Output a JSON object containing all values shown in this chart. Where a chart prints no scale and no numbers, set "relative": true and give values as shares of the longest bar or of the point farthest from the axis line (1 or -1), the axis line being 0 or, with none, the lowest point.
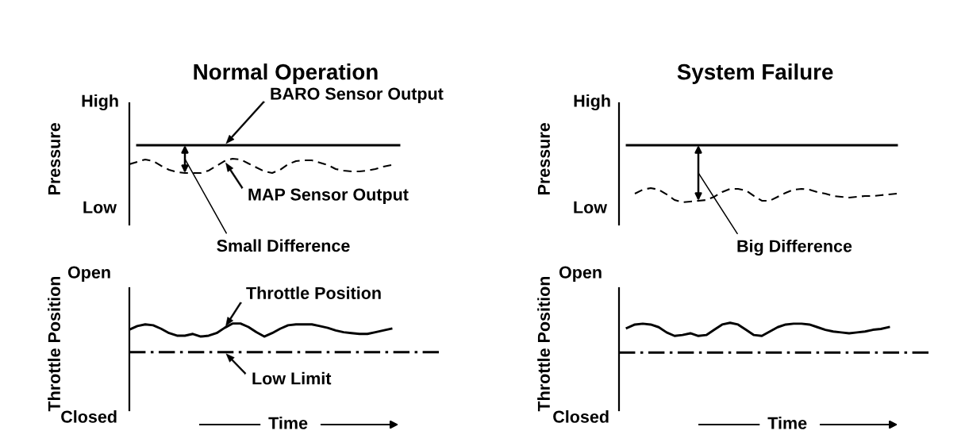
{
  "chart_data": [
    {
      "type": "line",
      "title": "Normal Operation",
      "ylabel": "Pressure",
      "relative": true,
      "categories": [
        null,
        null,
        null,
        null,
        null,
        null,
        null,
        null,
        null,
        null,
        null,
        null,
        null,
        null,
        null,
        null,
        null,
        null,
        null,
        null,
        null,
        null,
        null,
        null,
        null,
        null,
        null,
        null,
        null,
        null,
        null,
        null,
        null,
        null,
        null,
        null,
        null,
        null,
        null,
        null
      ],
      "series": [
        {
          "name": "BARO Sensor Output",
          "color": "#000000",
          "line_style": "solid",
          "values": [
            null,
            1,
            1,
            1,
            1,
            1,
            1,
            1,
            1,
            1,
            1,
            1,
            1,
            1,
            1,
            1,
            1,
            1,
            1,
            1,
            1,
            1,
            1,
            1,
            1,
            1,
            1,
            1,
            1,
            1,
            1,
            1,
            1,
            1,
            1,
            null,
            null,
            null,
            null,
            null
          ]
        },
        {
          "name": "MAP Sensor Output",
          "color": "#000000",
          "line_style": "dashed",
          "values": [
            0.76,
            0.79,
            0.82,
            0.8,
            0.74,
            0.69,
            0.66,
            0.65,
            0.65,
            0.65,
            0.68,
            0.74,
            0.8,
            0.83,
            0.82,
            0.77,
            0.72,
            0.67,
            0.65,
            0.69,
            0.76,
            0.8,
            0.81,
            0.81,
            0.78,
            0.75,
            0.7,
            0.68,
            0.67,
            0.67,
            0.68,
            0.7,
            0.73,
            0.75,
            null,
            null,
            null,
            null,
            null,
            null
          ]
        }
      ],
      "annotations": [
        "High",
        "Low",
        "Small Difference"
      ]
    },
    {
      "type": "line",
      "xlabel": "Time",
      "ylabel": "Throttle Position",
      "relative": true,
      "categories": [
        null,
        null,
        null,
        null,
        null,
        null,
        null,
        null,
        null,
        null,
        null,
        null,
        null,
        null,
        null,
        null,
        null,
        null,
        null,
        null,
        null,
        null,
        null,
        null,
        null,
        null,
        null,
        null,
        null,
        null,
        null,
        null,
        null,
        null,
        null,
        null,
        null,
        null,
        null,
        null
      ],
      "series": [
        {
          "name": "Throttle Position",
          "color": "#000000",
          "line_style": "solid",
          "values": [
            0.93,
            0.97,
            0.99,
            0.98,
            0.94,
            0.89,
            0.86,
            0.86,
            0.88,
            0.85,
            0.86,
            0.89,
            0.95,
            1.0,
            1.0,
            0.96,
            0.9,
            0.85,
            0.89,
            0.94,
            0.98,
            0.99,
            0.99,
            0.99,
            0.97,
            0.95,
            0.92,
            0.9,
            0.89,
            0.88,
            0.88,
            0.9,
            0.92,
            0.94,
            null,
            null,
            null,
            null,
            null,
            null
          ]
        },
        {
          "name": "Low Limit",
          "color": "#000000",
          "line_style": "dashdot",
          "values": [
            0.67,
            0.67,
            0.67,
            0.67,
            0.67,
            0.67,
            0.67,
            0.67,
            0.67,
            0.67,
            0.67,
            0.67,
            0.67,
            0.67,
            0.67,
            0.67,
            0.67,
            0.67,
            0.67,
            0.67,
            0.67,
            0.67,
            0.67,
            0.67,
            0.67,
            0.67,
            0.67,
            0.67,
            0.67,
            0.67,
            0.67,
            0.67,
            0.67,
            0.67,
            0.67,
            0.67,
            0.67,
            0.67,
            0.67,
            0.67
          ]
        }
      ],
      "annotations": [
        "Open",
        "Closed"
      ]
    },
    {
      "type": "line",
      "title": "System Failure",
      "ylabel": "Pressure",
      "relative": true,
      "categories": [
        null,
        null,
        null,
        null,
        null,
        null,
        null,
        null,
        null,
        null,
        null,
        null,
        null,
        null,
        null,
        null,
        null,
        null,
        null,
        null,
        null,
        null,
        null,
        null,
        null,
        null,
        null,
        null,
        null,
        null,
        null,
        null,
        null,
        null,
        null,
        null,
        null,
        null,
        null,
        null
      ],
      "series": [
        {
          "color": "#000000",
          "line_style": "solid",
          "values": [
            null,
            1,
            1,
            1,
            1,
            1,
            1,
            1,
            1,
            1,
            1,
            1,
            1,
            1,
            1,
            1,
            1,
            1,
            1,
            1,
            1,
            1,
            1,
            1,
            1,
            1,
            1,
            1,
            1,
            1,
            1,
            1,
            1,
            1,
            1,
            1,
            null,
            null,
            null,
            null
          ]
        },
        {
          "color": "#000000",
          "line_style": "dashed",
          "values": [
            null,
            null,
            0.39,
            0.44,
            0.46,
            0.44,
            0.38,
            0.31,
            0.28,
            0.29,
            0.3,
            0.31,
            0.35,
            0.41,
            0.45,
            0.45,
            0.43,
            0.36,
            0.3,
            0.3,
            0.35,
            0.4,
            0.44,
            0.45,
            0.44,
            0.41,
            0.39,
            0.36,
            0.35,
            0.34,
            0.35,
            0.36,
            0.36,
            0.37,
            0.38,
            0.39,
            null,
            null,
            null,
            null
          ]
        }
      ],
      "annotations": [
        "High",
        "Low",
        "Big Difference"
      ]
    },
    {
      "type": "line",
      "xlabel": "Time",
      "ylabel": "Throttle Position",
      "relative": true,
      "categories": [
        null,
        null,
        null,
        null,
        null,
        null,
        null,
        null,
        null,
        null,
        null,
        null,
        null,
        null,
        null,
        null,
        null,
        null,
        null,
        null,
        null,
        null,
        null,
        null,
        null,
        null,
        null,
        null,
        null,
        null,
        null,
        null,
        null,
        null,
        null,
        null,
        null,
        null,
        null,
        null
      ],
      "series": [
        {
          "color": "#000000",
          "line_style": "solid",
          "values": [
            null,
            0.94,
            0.98,
            0.99,
            0.98,
            0.95,
            0.89,
            0.85,
            0.86,
            0.88,
            0.85,
            0.86,
            0.92,
            0.98,
            1.0,
            0.98,
            0.92,
            0.86,
            0.85,
            0.9,
            0.95,
            0.98,
            0.99,
            0.99,
            0.98,
            0.95,
            0.92,
            0.9,
            0.89,
            0.88,
            0.89,
            0.9,
            0.92,
            0.93,
            0.95,
            null,
            null,
            null,
            null,
            null
          ]
        },
        {
          "color": "#000000",
          "line_style": "dashdot",
          "values": [
            0.66,
            0.66,
            0.66,
            0.66,
            0.66,
            0.66,
            0.66,
            0.66,
            0.66,
            0.66,
            0.66,
            0.66,
            0.66,
            0.66,
            0.66,
            0.66,
            0.66,
            0.66,
            0.66,
            0.66,
            0.66,
            0.66,
            0.66,
            0.66,
            0.66,
            0.66,
            0.66,
            0.66,
            0.66,
            0.66,
            0.66,
            0.66,
            0.66,
            0.66,
            0.66,
            0.66,
            0.66,
            0.66,
            0.66,
            0.66
          ]
        }
      ],
      "annotations": [
        "Open",
        "Closed"
      ]
    }
  ]
}
